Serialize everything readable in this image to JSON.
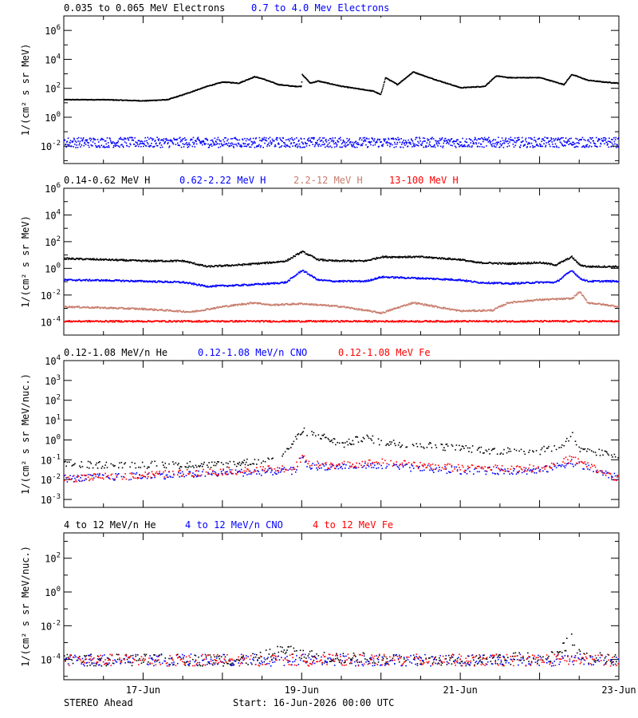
{
  "footer": {
    "left": "STEREO Ahead",
    "center": "Start: 16-Jun-2026 00:00 UTC"
  },
  "x_axis": {
    "range_days": [
      16,
      23
    ],
    "ticks": [
      {
        "day": 17,
        "label": "17-Jun"
      },
      {
        "day": 19,
        "label": "19-Jun"
      },
      {
        "day": 21,
        "label": "21-Jun"
      },
      {
        "day": 23,
        "label": "23-Jun"
      }
    ]
  },
  "chart_data": [
    {
      "type": "scatter",
      "panel": "electrons",
      "ylabel": "1/(cm² s sr MeV)",
      "yscale": "log",
      "ylim_log10": [
        -3.2,
        7
      ],
      "yticks_log10": [
        -2,
        0,
        2,
        4,
        6
      ],
      "series": [
        {
          "name": "0.035 to 0.065 MeV Electrons",
          "color": "#000000",
          "x": [
            16.0,
            16.5,
            17.0,
            17.3,
            17.5,
            17.8,
            18.0,
            18.2,
            18.4,
            18.5,
            18.7,
            18.9,
            18.99,
            19.0,
            19.1,
            19.2,
            19.5,
            19.9,
            19.99,
            20.05,
            20.2,
            20.35,
            20.4,
            20.6,
            21.0,
            21.3,
            21.45,
            21.6,
            22.0,
            22.3,
            22.4,
            22.6,
            22.8,
            22.99
          ],
          "y": [
            18,
            18,
            15,
            18,
            40,
            150,
            300,
            250,
            700,
            500,
            200,
            150,
            150,
            1000,
            250,
            350,
            150,
            70,
            40,
            600,
            200,
            900,
            1500,
            600,
            120,
            150,
            800,
            600,
            600,
            200,
            1000,
            400,
            300,
            250
          ]
        },
        {
          "name": "0.7 to 4.0 Mev Electrons",
          "color": "#0000ff",
          "x": [
            16.0,
            17.0,
            18.0,
            19.0,
            20.0,
            21.0,
            22.0,
            23.0
          ],
          "y": [
            0.02,
            0.02,
            0.02,
            0.02,
            0.02,
            0.02,
            0.02,
            0.02
          ]
        }
      ]
    },
    {
      "type": "scatter",
      "panel": "protons",
      "ylabel": "1/(cm² s sr MeV)",
      "yscale": "log",
      "ylim_log10": [
        -5,
        6
      ],
      "yticks_log10": [
        -4,
        -2,
        0,
        2,
        4,
        6
      ],
      "series": [
        {
          "name": "0.14-0.62 MeV H",
          "color": "#000000",
          "x": [
            16.0,
            16.5,
            17.0,
            17.5,
            17.8,
            18.2,
            18.6,
            18.8,
            19.0,
            19.2,
            19.4,
            19.8,
            20.0,
            20.5,
            21.0,
            21.2,
            21.6,
            22.0,
            22.2,
            22.4,
            22.5,
            22.6,
            23.0
          ],
          "y": [
            6,
            5,
            4,
            4,
            1.5,
            2,
            3,
            4,
            20,
            5,
            4,
            4,
            8,
            8,
            5,
            3,
            2.5,
            3,
            2,
            8,
            2,
            1.5,
            1.5
          ]
        },
        {
          "name": "0.62-2.22 MeV H",
          "color": "#0000ff",
          "x": [
            16.0,
            16.5,
            17.0,
            17.5,
            17.8,
            18.2,
            18.6,
            18.8,
            19.0,
            19.2,
            19.4,
            19.8,
            20.0,
            20.5,
            21.0,
            21.2,
            21.6,
            22.0,
            22.2,
            22.4,
            22.5,
            22.6,
            23.0
          ],
          "y": [
            0.15,
            0.14,
            0.12,
            0.1,
            0.05,
            0.06,
            0.08,
            0.1,
            0.8,
            0.15,
            0.12,
            0.12,
            0.25,
            0.2,
            0.15,
            0.1,
            0.08,
            0.1,
            0.1,
            0.8,
            0.2,
            0.12,
            0.12
          ]
        },
        {
          "name": "2.2-12 MeV H",
          "color": "#c87c6c",
          "x": [
            16.0,
            17.0,
            17.6,
            18.0,
            18.4,
            18.6,
            19.0,
            19.5,
            20.0,
            20.4,
            21.0,
            21.4,
            21.6,
            22.0,
            22.4,
            22.5,
            22.6,
            23.0
          ],
          "y": [
            0.0015,
            0.001,
            0.0006,
            0.0015,
            0.003,
            0.002,
            0.0025,
            0.0015,
            0.0005,
            0.003,
            0.0007,
            0.0008,
            0.003,
            0.005,
            0.006,
            0.02,
            0.003,
            0.0015
          ]
        },
        {
          "name": "13-100 MeV H",
          "color": "#ff0000",
          "x": [
            16.0,
            23.0
          ],
          "y": [
            0.00012,
            0.00012
          ]
        }
      ]
    },
    {
      "type": "scatter",
      "panel": "low-energy ions",
      "ylabel": "1/(cm² s sr MeV/nuc.)",
      "yscale": "log",
      "ylim_log10": [
        -3.4,
        4
      ],
      "yticks_log10": [
        -3,
        -2,
        -1,
        0,
        1,
        2,
        3,
        4
      ],
      "series": [
        {
          "name": "0.12-1.08 MeV/n He",
          "color": "#000000",
          "x": [
            16.0,
            17.0,
            18.0,
            18.5,
            18.8,
            19.0,
            19.2,
            19.5,
            19.8,
            20.0,
            20.5,
            21.0,
            21.5,
            22.0,
            22.3,
            22.4,
            22.5,
            23.0
          ],
          "y": [
            0.06,
            0.06,
            0.06,
            0.1,
            0.3,
            3,
            2,
            0.6,
            1.5,
            0.8,
            0.6,
            0.4,
            0.3,
            0.3,
            0.6,
            2.5,
            0.3,
            0.2
          ]
        },
        {
          "name": "0.12-1.08 MeV/n CNO",
          "color": "#0000ff",
          "x": [
            16.0,
            18.9,
            19.0,
            19.1,
            19.5,
            20.0,
            21.0,
            22.0,
            22.4,
            23.0
          ],
          "y": [
            0.012,
            0.03,
            0.12,
            0.05,
            0.05,
            0.05,
            0.03,
            0.03,
            0.08,
            0.012
          ]
        },
        {
          "name": "0.12-1.08 MeV Fe",
          "color": "#ff0000",
          "x": [
            16.0,
            18.9,
            19.0,
            19.1,
            19.5,
            20.0,
            21.0,
            22.0,
            22.4,
            23.0
          ],
          "y": [
            0.012,
            0.04,
            0.15,
            0.06,
            0.06,
            0.08,
            0.04,
            0.04,
            0.12,
            0.012
          ]
        }
      ]
    },
    {
      "type": "scatter",
      "panel": "high-energy ions",
      "ylabel": "1/(cm² s sr MeV/nuc.)",
      "yscale": "log",
      "ylim_log10": [
        -5.2,
        3.5
      ],
      "yticks_log10": [
        -4,
        -2,
        0,
        2
      ],
      "series": [
        {
          "name": "4 to 12 MeV/n He",
          "color": "#000000",
          "x": [
            16.0,
            18.3,
            18.5,
            18.8,
            19.0,
            19.2,
            20.5,
            21.0,
            22.2,
            22.4,
            22.5,
            23.0
          ],
          "y": [
            0.0001,
            0.0001,
            0.00015,
            0.00045,
            0.0002,
            0.00015,
            0.0001,
            0.0001,
            0.00015,
            0.002,
            0.00015,
            0.0001
          ]
        },
        {
          "name": "4 to 12 MeV/n CNO",
          "color": "#0000ff",
          "x": [
            16.0,
            23.0
          ],
          "y": [
            0.0001,
            0.0001
          ]
        },
        {
          "name": "4 to 12 MeV Fe",
          "color": "#ff0000",
          "x": [
            16.0,
            23.0
          ],
          "y": [
            0.0001,
            0.0001
          ]
        }
      ]
    }
  ]
}
